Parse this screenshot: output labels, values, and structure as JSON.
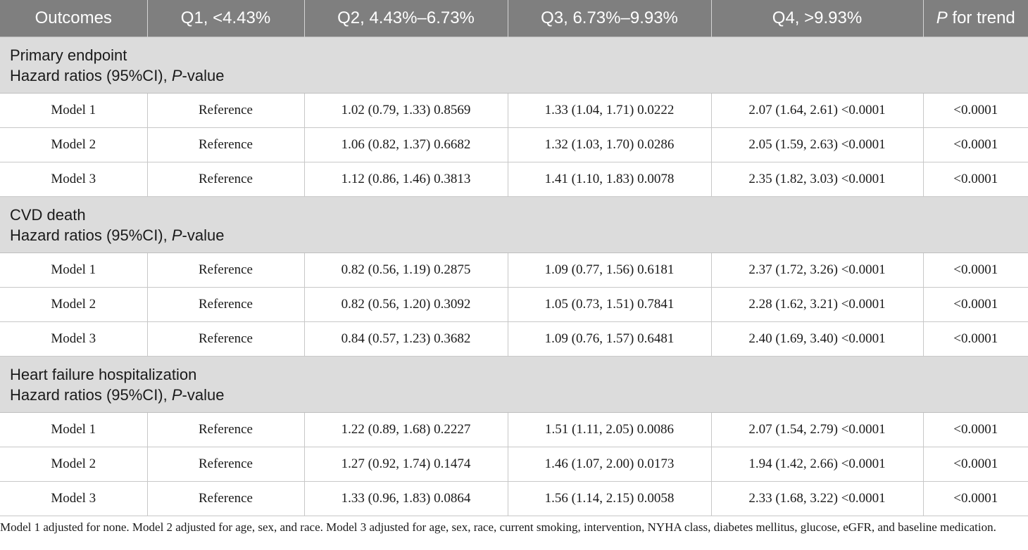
{
  "header": {
    "outcomes": "Outcomes",
    "q1": "Q1, <4.43%",
    "q2": "Q2, 4.43%–6.73%",
    "q3": "Q3, 6.73%–9.93%",
    "q4": "Q4, >9.93%",
    "p_trend_italic": "P",
    "p_trend_rest": " for trend"
  },
  "sections": [
    {
      "title": "Primary endpoint",
      "subtitle_pre": "Hazard ratios (95%CI), ",
      "subtitle_italic": "P",
      "subtitle_post": "-value",
      "rows": [
        {
          "model": "Model 1",
          "q1": "Reference",
          "q2": "1.02 (0.79, 1.33) 0.8569",
          "q3": "1.33 (1.04, 1.71) 0.0222",
          "q4": "2.07 (1.64, 2.61) <0.0001",
          "p": "<0.0001"
        },
        {
          "model": "Model 2",
          "q1": "Reference",
          "q2": "1.06 (0.82, 1.37) 0.6682",
          "q3": "1.32 (1.03, 1.70) 0.0286",
          "q4": "2.05 (1.59, 2.63) <0.0001",
          "p": "<0.0001"
        },
        {
          "model": "Model 3",
          "q1": "Reference",
          "q2": "1.12 (0.86, 1.46) 0.3813",
          "q3": "1.41 (1.10, 1.83) 0.0078",
          "q4": "2.35 (1.82, 3.03) <0.0001",
          "p": "<0.0001"
        }
      ]
    },
    {
      "title": "CVD death",
      "subtitle_pre": "Hazard ratios (95%CI), ",
      "subtitle_italic": "P",
      "subtitle_post": "-value",
      "rows": [
        {
          "model": "Model 1",
          "q1": "Reference",
          "q2": "0.82 (0.56, 1.19) 0.2875",
          "q3": "1.09 (0.77, 1.56) 0.6181",
          "q4": "2.37 (1.72, 3.26) <0.0001",
          "p": "<0.0001"
        },
        {
          "model": "Model 2",
          "q1": "Reference",
          "q2": "0.82 (0.56, 1.20) 0.3092",
          "q3": "1.05 (0.73, 1.51) 0.7841",
          "q4": "2.28 (1.62, 3.21) <0.0001",
          "p": "<0.0001"
        },
        {
          "model": "Model 3",
          "q1": "Reference",
          "q2": "0.84 (0.57, 1.23) 0.3682",
          "q3": "1.09 (0.76, 1.57) 0.6481",
          "q4": "2.40 (1.69, 3.40) <0.0001",
          "p": "<0.0001"
        }
      ]
    },
    {
      "title": "Heart failure hospitalization",
      "subtitle_pre": "Hazard ratios (95%CI), ",
      "subtitle_italic": "P",
      "subtitle_post": "-value",
      "rows": [
        {
          "model": "Model 1",
          "q1": "Reference",
          "q2": "1.22 (0.89, 1.68) 0.2227",
          "q3": "1.51 (1.11, 2.05) 0.0086",
          "q4": "2.07 (1.54, 2.79) <0.0001",
          "p": "<0.0001"
        },
        {
          "model": "Model 2",
          "q1": "Reference",
          "q2": "1.27 (0.92, 1.74) 0.1474",
          "q3": "1.46 (1.07, 2.00) 0.0173",
          "q4": "1.94 (1.42, 2.66) <0.0001",
          "p": "<0.0001"
        },
        {
          "model": "Model 3",
          "q1": "Reference",
          "q2": "1.33 (0.96, 1.83) 0.0864",
          "q3": "1.56 (1.14, 2.15) 0.0058",
          "q4": "2.33 (1.68, 3.22) <0.0001",
          "p": "<0.0001"
        }
      ]
    }
  ],
  "footnote": "Model 1 adjusted for none. Model 2 adjusted for age, sex, and race. Model 3 adjusted for age, sex, race, current smoking, intervention, NYHA class, diabetes mellitus, glucose, eGFR, and baseline medication."
}
